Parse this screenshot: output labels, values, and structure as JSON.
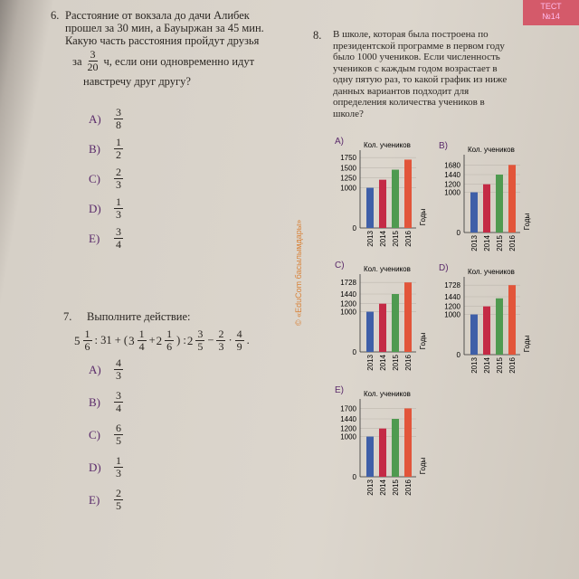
{
  "header": {
    "tab": "ТЕСТ",
    "number": "№14"
  },
  "side_text": "© «EduCom басылымдары»",
  "problem6": {
    "number": "6.",
    "lines": [
      "Расстояние от вокзала до дачи Алибек",
      "прошел за 30 мин, а Бауыржан за 45 мин.",
      "Какую часть расстояния пройдут друзья"
    ],
    "prefix": "за",
    "num": "3",
    "den": "20",
    "suffix": "ч, если они одновременно идут",
    "last_line": "навстречу друг другу?",
    "options": [
      {
        "letter": "A)",
        "num": "3",
        "den": "8"
      },
      {
        "letter": "B)",
        "num": "1",
        "den": "2"
      },
      {
        "letter": "C)",
        "num": "2",
        "den": "3"
      },
      {
        "letter": "D)",
        "num": "1",
        "den": "3"
      },
      {
        "letter": "E)",
        "num": "3",
        "den": "4"
      }
    ]
  },
  "problem7": {
    "number": "7.",
    "text": "Выполните действие:",
    "expression": [
      {
        "whole": "5",
        "num": "1",
        "den": "6"
      },
      {
        "text": ": 31 + ("
      },
      {
        "whole": "3",
        "num": "1",
        "den": "4"
      },
      {
        "text": "+"
      },
      {
        "whole": "2",
        "num": "1",
        "den": "6"
      },
      {
        "text": ") :"
      },
      {
        "whole": "2",
        "num": "3",
        "den": "5"
      },
      {
        "text": "−"
      },
      {
        "whole": "",
        "num": "2",
        "den": "3"
      },
      {
        "text": "·"
      },
      {
        "whole": "",
        "num": "4",
        "den": "9"
      },
      {
        "text": "."
      }
    ],
    "options": [
      {
        "letter": "A)",
        "num": "4",
        "den": "3"
      },
      {
        "letter": "B)",
        "num": "3",
        "den": "4"
      },
      {
        "letter": "C)",
        "num": "6",
        "den": "5"
      },
      {
        "letter": "D)",
        "num": "1",
        "den": "3"
      },
      {
        "letter": "E)",
        "num": "2",
        "den": "5"
      }
    ]
  },
  "problem8": {
    "number": "8.",
    "lines": [
      "В школе, которая была построена по",
      "президентской программе в первом году",
      "было 1000 учеников. Если численность",
      "учеников с каждым годом возрастает в",
      "одну пятую раз, то какой график из ниже",
      "данных вариантов подходит для",
      "определения количества учеников в",
      "школе?"
    ],
    "charts": [
      {
        "label": "A)",
        "y_label": "Кол. учеников",
        "x_label": "Годы",
        "categories": [
          "2013",
          "2014",
          "2015",
          "2016"
        ],
        "values": [
          1000,
          1200,
          1450,
          1700
        ],
        "colors": [
          "#3f5fa8",
          "#c42a45",
          "#4f9a50",
          "#e2553a"
        ],
        "ylim": [
          0,
          1800
        ],
        "yticks": [
          0,
          1000,
          1250,
          1500,
          1750
        ]
      },
      {
        "label": "B)",
        "y_label": "Кол. учеников",
        "x_label": "Годы",
        "categories": [
          "2013",
          "2014",
          "2015",
          "2016"
        ],
        "values": [
          1000,
          1200,
          1440,
          1680
        ],
        "colors": [
          "#3f5fa8",
          "#c42a45",
          "#4f9a50",
          "#e2553a"
        ],
        "ylim": [
          0,
          1800
        ],
        "yticks": [
          0,
          1000,
          1200,
          1440,
          1680
        ]
      },
      {
        "label": "C)",
        "y_label": "Кол. учеников",
        "x_label": "Годы",
        "categories": [
          "2013",
          "2014",
          "2015",
          "2016"
        ],
        "values": [
          1000,
          1200,
          1440,
          1728
        ],
        "colors": [
          "#3f5fa8",
          "#c42a45",
          "#4f9a50",
          "#e2553a"
        ],
        "ylim": [
          0,
          1800
        ],
        "yticks": [
          0,
          1000,
          1200,
          1440,
          1728
        ]
      },
      {
        "label": "D)",
        "y_label": "Кол. учеников",
        "x_label": "Годы",
        "categories": [
          "2013",
          "2014",
          "2015",
          "2016"
        ],
        "values": [
          1000,
          1200,
          1400,
          1728
        ],
        "colors": [
          "#3f5fa8",
          "#c42a45",
          "#4f9a50",
          "#e2553a"
        ],
        "ylim": [
          0,
          1800
        ],
        "yticks": [
          0,
          1000,
          1200,
          1440,
          1728
        ]
      },
      {
        "label": "E)",
        "y_label": "Кол. учеников",
        "x_label": "Годы",
        "categories": [
          "2013",
          "2014",
          "2015",
          "2016"
        ],
        "values": [
          1000,
          1200,
          1440,
          1700
        ],
        "colors": [
          "#3f5fa8",
          "#c42a45",
          "#4f9a50",
          "#e2553a"
        ],
        "ylim": [
          0,
          1800
        ],
        "yticks": [
          0,
          1000,
          1200,
          1440,
          1700
        ]
      }
    ]
  }
}
